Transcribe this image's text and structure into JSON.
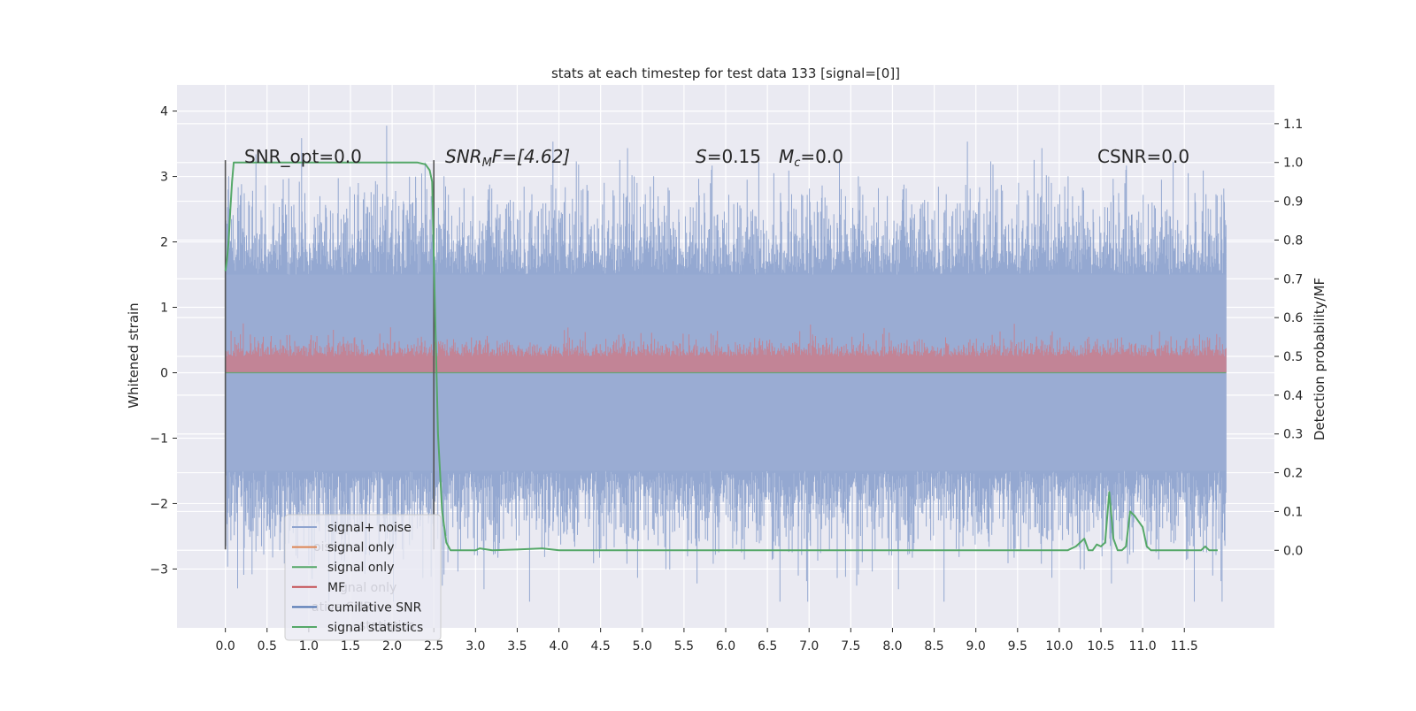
{
  "chart_data": {
    "type": "line",
    "title": "stats at each timestep for test data 133 [signal=[0]]",
    "ylabel_left": "Whitened strain",
    "ylabel_right": "Detection probability/MF",
    "xlim": [
      -0.58,
      12.58
    ],
    "ylim_left": [
      -3.9,
      4.4
    ],
    "ylim_right": [
      -0.2,
      1.2
    ],
    "x_ticks": [
      "0.0",
      "0.5",
      "1.0",
      "1.5",
      "2.0",
      "2.5",
      "3.0",
      "3.5",
      "4.0",
      "4.5",
      "5.0",
      "5.5",
      "6.0",
      "6.5",
      "7.0",
      "7.5",
      "8.0",
      "8.5",
      "9.0",
      "9.5",
      "10.0",
      "10.5",
      "11.0",
      "11.5"
    ],
    "y_ticks_left": [
      "4",
      "3",
      "2",
      "1",
      "0",
      "−1",
      "−2",
      "−3"
    ],
    "y_ticks_right": [
      "1.1",
      "1.0",
      "0.9",
      "0.8",
      "0.7",
      "0.6",
      "0.5",
      "0.4",
      "0.3",
      "0.2",
      "0.1",
      "0.0"
    ],
    "annotations": {
      "snr_opt": "SNR_opt=0.0",
      "snr_mf_name": "SNR",
      "snr_mf_sub": "M",
      "snr_mf_rest": "F=[4.62]",
      "s_name": "S",
      "s_value": "=0.15",
      "mc_name": "M",
      "mc_sub": "c",
      "mc_value": "=0.0",
      "csnr": "CSNR=0.0"
    },
    "legend_position": "lower-left",
    "legend": [
      {
        "label": "signal+ noise",
        "color": "#8fa4cf"
      },
      {
        "label": "signal only",
        "color": "#dd8452"
      },
      {
        "label": "signal only",
        "color": "#55a868"
      },
      {
        "label": "MF",
        "color": "#c44e52"
      },
      {
        "label": "cumilative SNR",
        "color": "#4c72b0"
      },
      {
        "label": "signal statistics",
        "color": "#55a868"
      }
    ],
    "legend_ghost_text": [
      "oise",
      "gnal only",
      "ative SNR",
      "statistics"
    ],
    "series": [
      {
        "name": "signal+ noise",
        "kind": "noise_band",
        "x_range": [
          0.0,
          12.0
        ],
        "typical_range": [
          -1.5,
          1.5
        ],
        "extreme_range": [
          -3.5,
          4.1
        ]
      },
      {
        "name": "MF",
        "kind": "positive_noise",
        "x_range": [
          0.0,
          12.0
        ],
        "typical_range": [
          0.0,
          0.5
        ],
        "extreme_range": [
          0.0,
          0.9
        ]
      },
      {
        "name": "signal only",
        "kind": "flat",
        "x_range": [
          0.0,
          12.0
        ],
        "value": 0.0
      },
      {
        "name": "signal statistics",
        "axis": "right",
        "x": [
          0.0,
          0.02,
          0.04,
          0.06,
          0.08,
          0.1,
          0.15,
          0.3,
          0.5,
          1.0,
          1.5,
          2.0,
          2.3,
          2.4,
          2.45,
          2.48,
          2.5,
          2.55,
          2.6,
          2.65,
          2.7,
          2.8,
          3.0,
          3.05,
          3.2,
          3.5,
          3.8,
          4.0,
          4.5,
          5.0,
          6.0,
          7.0,
          8.0,
          9.0,
          10.0,
          10.1,
          10.2,
          10.3,
          10.35,
          10.4,
          10.45,
          10.5,
          10.55,
          10.6,
          10.65,
          10.7,
          10.75,
          10.8,
          10.85,
          10.9,
          10.95,
          11.0,
          11.05,
          11.1,
          11.15,
          11.2,
          11.3,
          11.5,
          11.7,
          11.75,
          11.8,
          11.9
        ],
        "values": [
          0.72,
          0.75,
          0.8,
          0.88,
          0.95,
          1.0,
          1.0,
          1.0,
          1.0,
          1.0,
          1.0,
          1.0,
          1.0,
          0.995,
          0.98,
          0.95,
          0.75,
          0.3,
          0.1,
          0.02,
          0.0,
          0.0,
          0.0,
          0.005,
          0.0,
          0.002,
          0.005,
          0.0,
          0.0,
          0.0,
          0.0,
          0.0,
          0.0,
          0.0,
          0.0,
          0.0,
          0.01,
          0.03,
          0.0,
          0.0,
          0.015,
          0.01,
          0.02,
          0.15,
          0.03,
          0.0,
          0.0,
          0.01,
          0.1,
          0.09,
          0.075,
          0.06,
          0.01,
          0.0,
          0.0,
          0.0,
          0.0,
          0.0,
          0.0,
          0.01,
          0.0,
          0.0
        ]
      }
    ],
    "markers": [
      {
        "x": 0.0
      },
      {
        "x": 2.5
      }
    ]
  }
}
